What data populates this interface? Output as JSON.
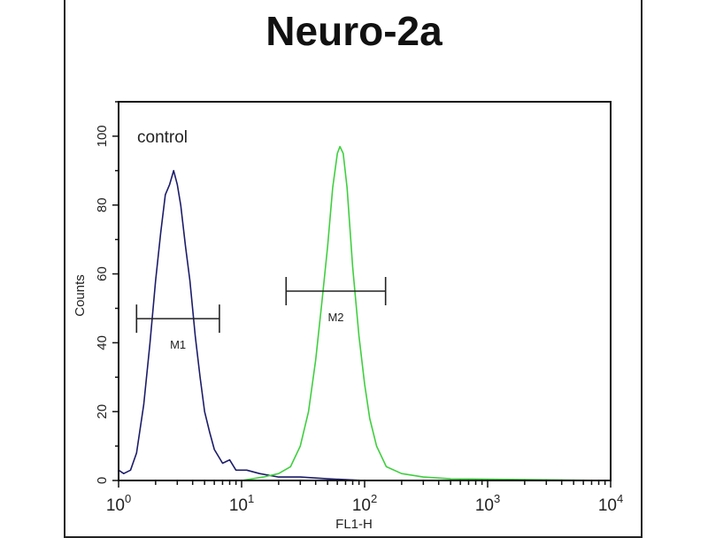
{
  "chart_data": {
    "type": "line",
    "title": "Neuro-2a",
    "xlabel": "FL1-H",
    "ylabel": "Counts",
    "xscale": "log",
    "xlim": [
      1,
      10000
    ],
    "ylim": [
      0,
      110
    ],
    "x_ticks": [
      {
        "value": 1,
        "base": "10",
        "exp": "0"
      },
      {
        "value": 10,
        "base": "10",
        "exp": "1"
      },
      {
        "value": 100,
        "base": "10",
        "exp": "2"
      },
      {
        "value": 1000,
        "base": "10",
        "exp": "3"
      },
      {
        "value": 10000,
        "base": "10",
        "exp": "4"
      }
    ],
    "y_ticks": [
      0,
      20,
      40,
      60,
      80,
      100
    ],
    "grid": false,
    "annotation": "control",
    "series": [
      {
        "color": "#1c1c6a",
        "x": [
          1.0,
          1.1,
          1.25,
          1.4,
          1.6,
          1.8,
          2.0,
          2.2,
          2.4,
          2.6,
          2.8,
          3.0,
          3.2,
          3.5,
          3.8,
          4.2,
          4.6,
          5.0,
          5.5,
          6.0,
          7.0,
          8.0,
          9.0,
          11,
          14,
          20,
          30,
          50,
          100,
          10000
        ],
        "y": [
          3,
          2,
          3,
          8,
          22,
          40,
          58,
          72,
          83,
          86,
          90,
          86,
          80,
          68,
          58,
          42,
          30,
          20,
          14,
          9,
          5,
          6,
          3,
          3,
          2,
          1,
          1,
          0.5,
          0,
          0
        ]
      },
      {
        "color": "#3fcf3f",
        "x": [
          1,
          10,
          15,
          20,
          25,
          30,
          35,
          40,
          45,
          50,
          55,
          60,
          63,
          67,
          72,
          80,
          90,
          100,
          110,
          125,
          150,
          200,
          300,
          500,
          10000
        ],
        "y": [
          0,
          0,
          1,
          2,
          4,
          10,
          20,
          35,
          52,
          68,
          85,
          95,
          97,
          95,
          85,
          62,
          42,
          28,
          18,
          10,
          4,
          2,
          1,
          0.5,
          0
        ]
      }
    ],
    "markers": [
      {
        "label": "M1",
        "x_start": 1.4,
        "x_end": 6.6,
        "level": 47
      },
      {
        "label": "M2",
        "x_start": 23,
        "x_end": 148,
        "level": 55
      }
    ]
  }
}
